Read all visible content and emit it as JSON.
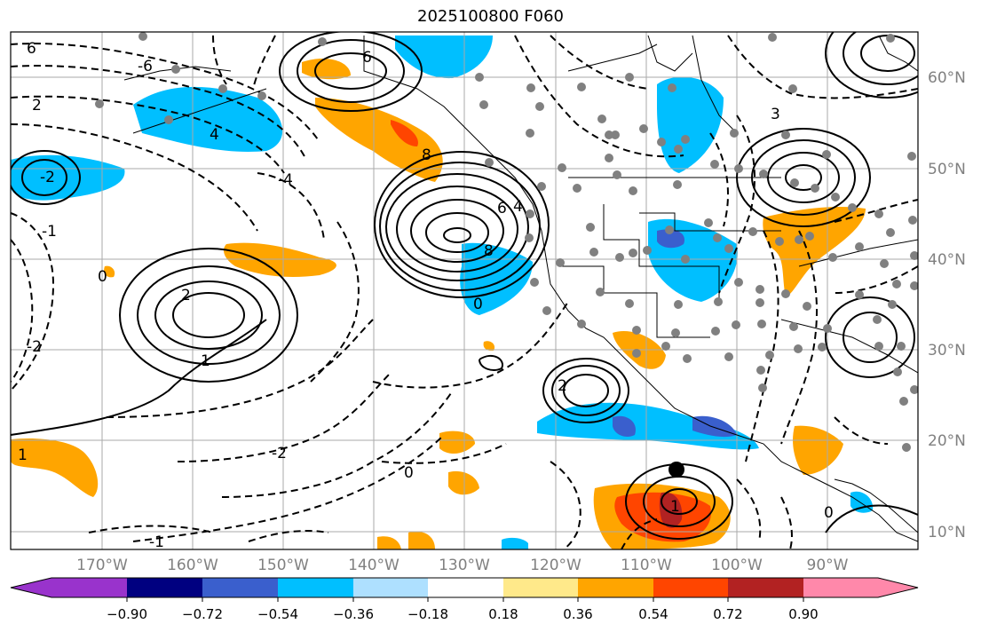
{
  "title": "2025100800 F060",
  "map": {
    "lon_labels": [
      "170°W",
      "160°W",
      "150°W",
      "140°W",
      "130°W",
      "120°W",
      "110°W",
      "100°W",
      "90°W"
    ],
    "lat_labels": [
      "60°N",
      "50°N",
      "40°N",
      "30°N",
      "20°N",
      "10°N"
    ],
    "contour_labels": [
      "6",
      "-6",
      "2",
      "4",
      "6",
      "8",
      "0",
      "-2",
      "-4",
      "2",
      "0",
      "4",
      "6",
      "8",
      "1",
      "-1",
      "2",
      "3",
      "1",
      "0",
      "-1",
      "-2",
      "-2",
      "0",
      "1"
    ],
    "marker": "black circle over Mexico coast"
  },
  "colorbar": {
    "ticks": [
      "−0.90",
      "−0.72",
      "−0.54",
      "−0.36",
      "−0.18",
      "0.18",
      "0.36",
      "0.54",
      "0.72",
      "0.90"
    ],
    "colors": [
      "#9933cc",
      "#000080",
      "#3a5fcd",
      "#00bfff",
      "#aee0ff",
      "#ffffff",
      "#ffe98a",
      "#ffa500",
      "#ff4500",
      "#b22222",
      "#ff88aa"
    ]
  }
}
